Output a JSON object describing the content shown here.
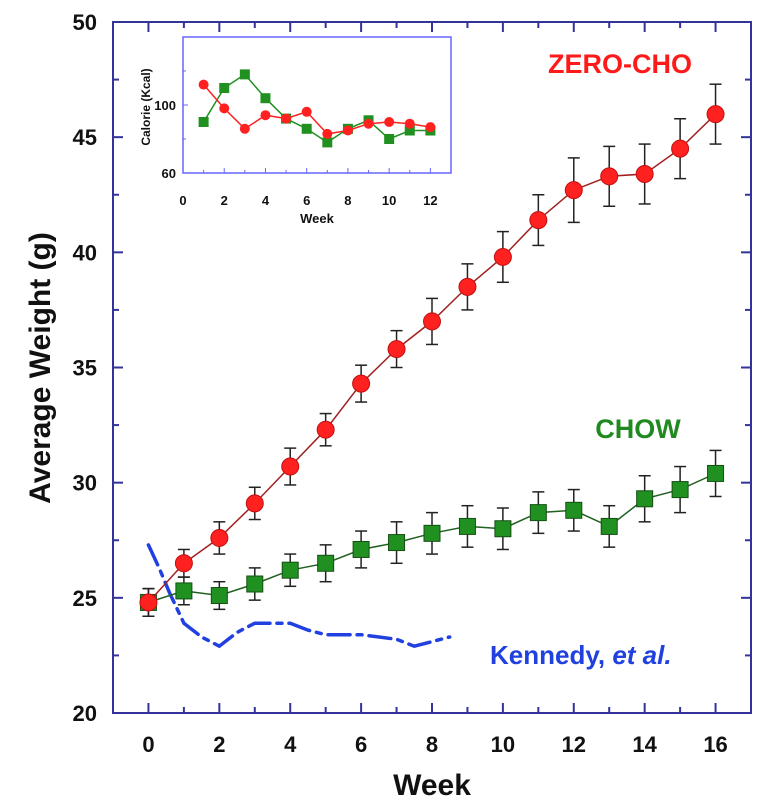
{
  "chart_data": [
    {
      "type": "line",
      "xlabel": "Week",
      "ylabel": "Average Weight (g)",
      "xlim": [
        -1,
        17
      ],
      "ylim": [
        20,
        50
      ],
      "xticks": [
        "0",
        "2",
        "4",
        "6",
        "8",
        "10",
        "12",
        "14",
        "16"
      ],
      "yticks": [
        "20",
        "25",
        "30",
        "35",
        "40",
        "45",
        "50"
      ],
      "grid": false,
      "series": [
        {
          "name": "ZERO-CHO",
          "color": "#ff2020",
          "line_color": "#a02020",
          "marker": "circle",
          "x": [
            0,
            1,
            2,
            3,
            4,
            5,
            6,
            7,
            8,
            9,
            10,
            11,
            12,
            13,
            14,
            15,
            16
          ],
          "y": [
            24.8,
            26.5,
            27.6,
            29.1,
            30.7,
            32.3,
            34.3,
            35.8,
            37.0,
            38.5,
            39.8,
            41.4,
            42.7,
            43.3,
            43.4,
            44.5,
            46.0
          ],
          "err": [
            0.6,
            0.6,
            0.7,
            0.7,
            0.8,
            0.7,
            0.8,
            0.8,
            1.0,
            1.0,
            1.1,
            1.1,
            1.4,
            1.3,
            1.3,
            1.3,
            1.3
          ]
        },
        {
          "name": "CHOW",
          "color": "#209020",
          "line_color": "#206020",
          "marker": "square",
          "x": [
            0,
            1,
            2,
            3,
            4,
            5,
            6,
            7,
            8,
            9,
            10,
            11,
            12,
            13,
            14,
            15,
            16
          ],
          "y": [
            24.8,
            25.3,
            25.1,
            25.6,
            26.2,
            26.5,
            27.1,
            27.4,
            27.8,
            28.1,
            28.0,
            28.7,
            28.8,
            28.1,
            29.3,
            29.7,
            30.4
          ],
          "err": [
            0.6,
            0.6,
            0.6,
            0.7,
            0.7,
            0.8,
            0.8,
            0.9,
            0.9,
            0.9,
            0.9,
            0.9,
            0.9,
            0.9,
            1.0,
            1.0,
            1.0
          ]
        },
        {
          "name": "Kennedy, et al.",
          "color": "#2040e0",
          "style": "dash-dot",
          "x": [
            0,
            0.3,
            0.6,
            1.0,
            1.5,
            2.0,
            2.5,
            3.0,
            3.5,
            4.0,
            4.5,
            5.0,
            6.0,
            7.0,
            7.5,
            8.0,
            8.5
          ],
          "y": [
            27.3,
            26.3,
            25.2,
            23.9,
            23.3,
            22.9,
            23.5,
            23.9,
            23.9,
            23.9,
            23.6,
            23.4,
            23.4,
            23.2,
            22.9,
            23.1,
            23.3
          ]
        }
      ],
      "annotations": {
        "zero_cho": "ZERO-CHO",
        "chow": "CHOW",
        "kennedy_prefix": "Kennedy, ",
        "kennedy_etal": "et al."
      }
    },
    {
      "type": "line",
      "xlabel": "Week",
      "ylabel": "Calorie (Kcal)",
      "xlim": [
        0,
        13
      ],
      "ylim": [
        60,
        140
      ],
      "xticks": [
        "0",
        "2",
        "4",
        "6",
        "8",
        "10",
        "12"
      ],
      "yticks": [
        "60",
        "100"
      ],
      "series": [
        {
          "name": "ZERO-CHO",
          "color": "#ff2020",
          "marker": "circle",
          "x": [
            1,
            2,
            3,
            4,
            5,
            6,
            7,
            8,
            9,
            10,
            11,
            12
          ],
          "y": [
            112,
            98,
            86,
            94,
            92,
            96,
            83,
            85,
            89,
            90,
            89,
            87
          ]
        },
        {
          "name": "CHOW",
          "color": "#209020",
          "marker": "square",
          "x": [
            1,
            2,
            3,
            4,
            5,
            6,
            7,
            8,
            9,
            10,
            11,
            12
          ],
          "y": [
            90,
            110,
            118,
            104,
            92,
            86,
            78,
            86,
            91,
            80,
            85,
            85
          ]
        }
      ]
    }
  ]
}
